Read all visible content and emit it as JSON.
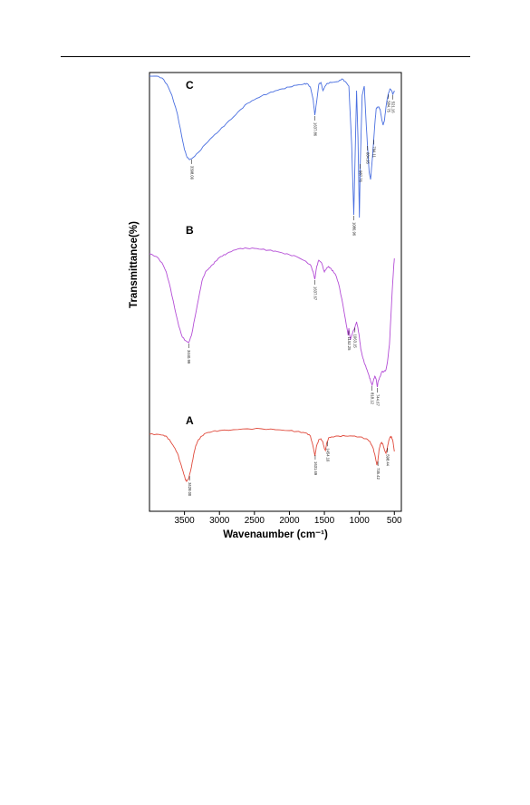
{
  "chart_data": {
    "type": "line",
    "xlabel": "Wavenaumber (cm⁻¹)",
    "ylabel": "Transmittance(%)",
    "xlim": [
      4000,
      400
    ],
    "x_reversed": true,
    "x_ticks": [
      {
        "value": 3500,
        "label": "3500"
      },
      {
        "value": 3000,
        "label": "3000"
      },
      {
        "value": 2500,
        "label": "2500"
      },
      {
        "value": 2000,
        "label": "2000"
      },
      {
        "value": 1500,
        "label": "1500"
      },
      {
        "value": 1000,
        "label": "1000"
      },
      {
        "value": 500,
        "label": "500"
      }
    ],
    "grid": false,
    "y_scale": "transmittance, arbitrary offsets (no y ticks shown)",
    "series": [
      {
        "name": "C",
        "color": "#4a6fe0",
        "points": [
          [
            4000,
            84
          ],
          [
            3900,
            84
          ],
          [
            3820,
            86
          ],
          [
            3750,
            93
          ],
          [
            3680,
            105
          ],
          [
            3600,
            126
          ],
          [
            3540,
            150
          ],
          [
            3500,
            165
          ],
          [
            3460,
            174
          ],
          [
            3420,
            176
          ],
          [
            3380,
            174
          ],
          [
            3300,
            168
          ],
          [
            3200,
            159
          ],
          [
            3100,
            151
          ],
          [
            3000,
            144
          ],
          [
            2900,
            136
          ],
          [
            2800,
            129
          ],
          [
            2700,
            121
          ],
          [
            2600,
            114
          ],
          [
            2500,
            110
          ],
          [
            2400,
            106
          ],
          [
            2300,
            103
          ],
          [
            2200,
            100
          ],
          [
            2100,
            98
          ],
          [
            2000,
            96
          ],
          [
            1900,
            94
          ],
          [
            1800,
            93
          ],
          [
            1750,
            92
          ],
          [
            1700,
            96
          ],
          [
            1660,
            110
          ],
          [
            1637,
            127
          ],
          [
            1610,
            112
          ],
          [
            1580,
            93
          ],
          [
            1550,
            91
          ],
          [
            1520,
            100
          ],
          [
            1490,
            95
          ],
          [
            1460,
            92
          ],
          [
            1400,
            91
          ],
          [
            1300,
            90
          ],
          [
            1250,
            87
          ],
          [
            1200,
            90
          ],
          [
            1150,
            95
          ],
          [
            1110,
            160
          ],
          [
            1080,
            237
          ],
          [
            1060,
            170
          ],
          [
            1040,
            100
          ],
          [
            1020,
            152
          ],
          [
            1000,
            240
          ],
          [
            987,
            180
          ],
          [
            960,
            105
          ],
          [
            930,
            95
          ],
          [
            900,
            140
          ],
          [
            880,
            165
          ],
          [
            860,
            190
          ],
          [
            840,
            198
          ],
          [
            820,
            180
          ],
          [
            800,
            160
          ],
          [
            780,
            138
          ],
          [
            760,
            120
          ],
          [
            740,
            118
          ],
          [
            720,
            118
          ],
          [
            700,
            122
          ],
          [
            680,
            132
          ],
          [
            660,
            138
          ],
          [
            640,
            132
          ],
          [
            620,
            118
          ],
          [
            600,
            108
          ],
          [
            580,
            102
          ],
          [
            560,
            98
          ],
          [
            540,
            100
          ],
          [
            520,
            104
          ],
          [
            500,
            100
          ]
        ],
        "peaks": [
          {
            "x": 3398,
            "label": "3398.00"
          },
          {
            "x": 1637,
            "label": "1637.86"
          },
          {
            "x": 1080,
            "label": "1080.96"
          },
          {
            "x": 987,
            "label": "987.76"
          },
          {
            "x": 884,
            "label": "884.95"
          },
          {
            "x": 794,
            "label": "794.11"
          },
          {
            "x": 584,
            "label": "584.75"
          },
          {
            "x": 521,
            "label": "521.16"
          }
        ]
      },
      {
        "name": "B",
        "color": "#b44dd6",
        "points": [
          [
            4000,
            280
          ],
          [
            3900,
            283
          ],
          [
            3820,
            290
          ],
          [
            3760,
            300
          ],
          [
            3700,
            318
          ],
          [
            3640,
            340
          ],
          [
            3580,
            360
          ],
          [
            3530,
            372
          ],
          [
            3480,
            376
          ],
          [
            3440,
            378
          ],
          [
            3400,
            370
          ],
          [
            3350,
            350
          ],
          [
            3300,
            330
          ],
          [
            3250,
            310
          ],
          [
            3200,
            300
          ],
          [
            3150,
            296
          ],
          [
            3100,
            292
          ],
          [
            3050,
            288
          ],
          [
            3000,
            284
          ],
          [
            2950,
            282
          ],
          [
            2900,
            280
          ],
          [
            2800,
            276
          ],
          [
            2700,
            274
          ],
          [
            2600,
            274
          ],
          [
            2500,
            274
          ],
          [
            2400,
            275
          ],
          [
            2300,
            276
          ],
          [
            2200,
            277
          ],
          [
            2100,
            279
          ],
          [
            2000,
            281
          ],
          [
            1900,
            283
          ],
          [
            1800,
            287
          ],
          [
            1700,
            292
          ],
          [
            1660,
            300
          ],
          [
            1637,
            308
          ],
          [
            1610,
            294
          ],
          [
            1580,
            287
          ],
          [
            1540,
            290
          ],
          [
            1500,
            300
          ],
          [
            1470,
            296
          ],
          [
            1440,
            294
          ],
          [
            1400,
            297
          ],
          [
            1370,
            300
          ],
          [
            1340,
            303
          ],
          [
            1300,
            312
          ],
          [
            1250,
            330
          ],
          [
            1200,
            352
          ],
          [
            1160,
            370
          ],
          [
            1150,
            362
          ],
          [
            1130,
            375
          ],
          [
            1100,
            368
          ],
          [
            1060,
            360
          ],
          [
            1040,
            355
          ],
          [
            1020,
            362
          ],
          [
            1000,
            372
          ],
          [
            980,
            385
          ],
          [
            950,
            395
          ],
          [
            920,
            402
          ],
          [
            890,
            408
          ],
          [
            860,
            415
          ],
          [
            840,
            420
          ],
          [
            818,
            425
          ],
          [
            800,
            420
          ],
          [
            780,
            415
          ],
          [
            760,
            418
          ],
          [
            744,
            427
          ],
          [
            730,
            420
          ],
          [
            700,
            415
          ],
          [
            680,
            410
          ],
          [
            650,
            410
          ],
          [
            620,
            408
          ],
          [
            600,
            400
          ],
          [
            570,
            380
          ],
          [
            550,
            350
          ],
          [
            530,
            320
          ],
          [
            510,
            295
          ],
          [
            500,
            285
          ]
        ],
        "peaks": [
          {
            "x": 3440,
            "label": "3440.99"
          },
          {
            "x": 1637,
            "label": "1637.67"
          },
          {
            "x": 1152,
            "label": "1152.25"
          },
          {
            "x": 1063,
            "label": "1063.15"
          },
          {
            "x": 818,
            "label": "818.12"
          },
          {
            "x": 744,
            "label": "744.67"
          }
        ]
      },
      {
        "name": "A",
        "color": "#e04a3c",
        "points": [
          [
            4000,
            479
          ],
          [
            3900,
            479
          ],
          [
            3800,
            480
          ],
          [
            3750,
            482
          ],
          [
            3700,
            487
          ],
          [
            3650,
            493
          ],
          [
            3600,
            500
          ],
          [
            3560,
            510
          ],
          [
            3520,
            520
          ],
          [
            3490,
            528
          ],
          [
            3470,
            531
          ],
          [
            3440,
            528
          ],
          [
            3400,
            515
          ],
          [
            3370,
            502
          ],
          [
            3340,
            492
          ],
          [
            3300,
            485
          ],
          [
            3250,
            481
          ],
          [
            3200,
            478
          ],
          [
            3100,
            476
          ],
          [
            3000,
            475
          ],
          [
            2800,
            474
          ],
          [
            2600,
            473
          ],
          [
            2400,
            473
          ],
          [
            2200,
            474
          ],
          [
            2000,
            475
          ],
          [
            1900,
            476
          ],
          [
            1800,
            477
          ],
          [
            1750,
            478
          ],
          [
            1700,
            481
          ],
          [
            1660,
            493
          ],
          [
            1635,
            503
          ],
          [
            1615,
            493
          ],
          [
            1580,
            485
          ],
          [
            1550,
            484
          ],
          [
            1520,
            488
          ],
          [
            1500,
            495
          ],
          [
            1485,
            497
          ],
          [
            1470,
            490
          ],
          [
            1440,
            483
          ],
          [
            1400,
            482
          ],
          [
            1300,
            481
          ],
          [
            1200,
            481
          ],
          [
            1100,
            481
          ],
          [
            1000,
            482
          ],
          [
            900,
            484
          ],
          [
            850,
            487
          ],
          [
            800,
            495
          ],
          [
            770,
            505
          ],
          [
            750,
            513
          ],
          [
            735,
            508
          ],
          [
            720,
            497
          ],
          [
            700,
            490
          ],
          [
            680,
            488
          ],
          [
            660,
            491
          ],
          [
            640,
            497
          ],
          [
            620,
            500
          ],
          [
            600,
            494
          ],
          [
            580,
            486
          ],
          [
            560,
            482
          ],
          [
            540,
            482
          ],
          [
            520,
            487
          ],
          [
            500,
            498
          ]
        ],
        "peaks": [
          {
            "x": 3428,
            "label": "3428.00"
          },
          {
            "x": 1631,
            "label": "1631.69"
          },
          {
            "x": 1454,
            "label": "1454.10"
          },
          {
            "x": 735,
            "label": "735.42"
          },
          {
            "x": 598,
            "label": "598.44"
          }
        ]
      }
    ]
  }
}
